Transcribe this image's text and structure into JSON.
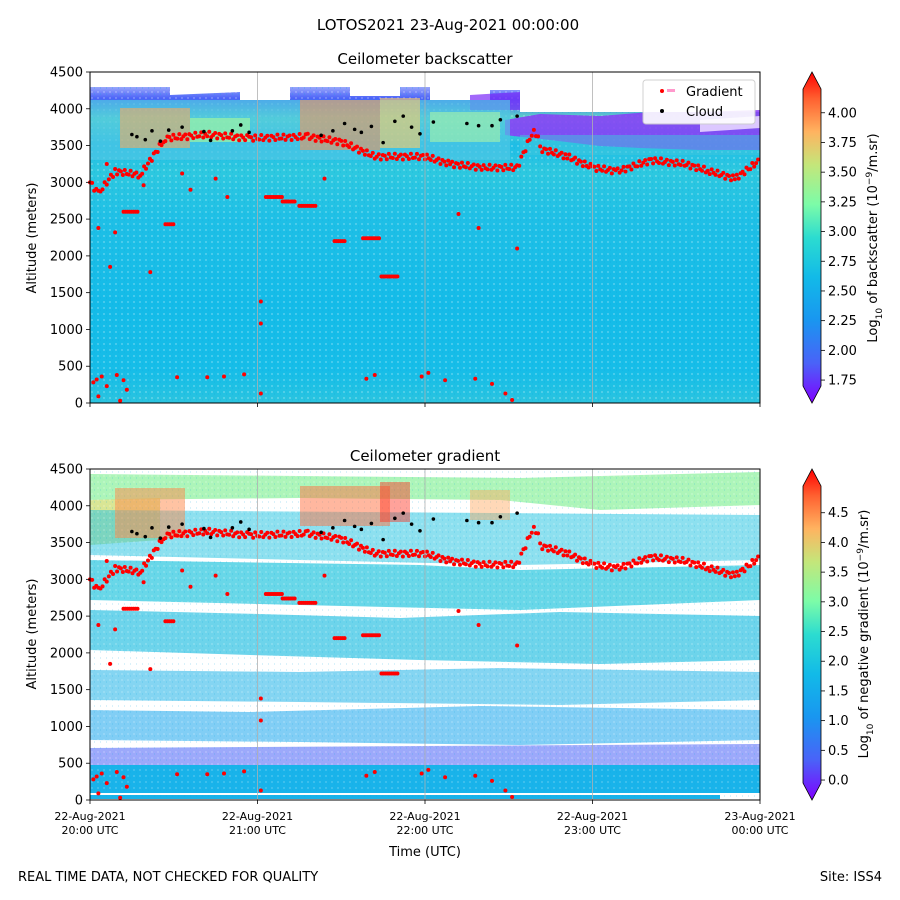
{
  "figure": {
    "title": "LOTOS2021 23-Aug-2021 00:00:00",
    "footer_left": "REAL TIME DATA, NOT CHECKED FOR QUALITY",
    "footer_right": "Site: ISS4",
    "xlabel": "Time (UTC)",
    "x_ticks": [
      {
        "date": "22-Aug-2021",
        "time": "20:00 UTC"
      },
      {
        "date": "22-Aug-2021",
        "time": "21:00 UTC"
      },
      {
        "date": "22-Aug-2021",
        "time": "22:00 UTC"
      },
      {
        "date": "22-Aug-2021",
        "time": "23:00 UTC"
      },
      {
        "date": "23-Aug-2021",
        "time": "00:00 UTC"
      }
    ]
  },
  "colors": {
    "gradient_marker": "#ff0000",
    "cloud_marker": "#000000",
    "grid": "#b0b0b0",
    "cmap": [
      "#8000ff",
      "#4a62f8",
      "#12bae8",
      "#2cdcd0",
      "#7cfca8",
      "#c4e67a",
      "#ffb360",
      "#ff6030",
      "#ff0000"
    ]
  },
  "chart_data": [
    {
      "type": "heatmap",
      "title": "Ceilometer backscatter",
      "xlabel": "",
      "ylabel": "Altitude (meters)",
      "xlim": [
        0,
        4
      ],
      "ylim": [
        0,
        4500
      ],
      "y_ticks": [
        0,
        500,
        1000,
        1500,
        2000,
        2500,
        3000,
        3500,
        4000,
        4500
      ],
      "colorbar": {
        "label": "Log10 of backscatter (10^-9/m.sr)",
        "label_base": "Log",
        "label_sub": "10",
        "label_mid": " of backscatter (10",
        "label_sup": "−9",
        "label_end": "/m.sr)",
        "range": [
          1.7,
          4.2
        ],
        "ticks": [
          "1.75",
          "2.00",
          "2.25",
          "2.50",
          "2.75",
          "3.00",
          "3.25",
          "3.50",
          "3.75",
          "4.00"
        ]
      },
      "legend": {
        "position": "top-right",
        "entries": [
          "Gradient",
          "Cloud"
        ]
      }
    },
    {
      "type": "heatmap",
      "title": "Ceilometer gradient",
      "xlabel": "Time (UTC)",
      "ylabel": "Altitude (meters)",
      "xlim": [
        0,
        4
      ],
      "ylim": [
        0,
        4500
      ],
      "y_ticks": [
        0,
        500,
        1000,
        1500,
        2000,
        2500,
        3000,
        3500,
        4000,
        4500
      ],
      "colorbar": {
        "label": "Log10 of negative gradient (10^-9/m.sr)",
        "label_base": "Log",
        "label_sub": "10",
        "label_mid": " of negative gradient (10",
        "label_sup": "−9",
        "label_end": "/m.sr)",
        "range": [
          -0.05,
          4.95
        ],
        "ticks": [
          "0.0",
          "0.5",
          "1.0",
          "1.5",
          "2.0",
          "2.5",
          "3.0",
          "3.5",
          "4.0",
          "4.5"
        ]
      }
    }
  ],
  "series": {
    "gradient_line": [
      [
        0,
        3000
      ],
      [
        0.05,
        2850
      ],
      [
        0.15,
        3150
      ],
      [
        0.3,
        3100
      ],
      [
        0.45,
        3600
      ],
      [
        0.7,
        3650
      ],
      [
        0.95,
        3600
      ],
      [
        1.3,
        3620
      ],
      [
        1.5,
        3550
      ],
      [
        1.7,
        3350
      ],
      [
        2.0,
        3350
      ],
      [
        2.15,
        3250
      ],
      [
        2.35,
        3200
      ],
      [
        2.55,
        3200
      ],
      [
        2.65,
        3720
      ],
      [
        2.7,
        3450
      ],
      [
        2.85,
        3350
      ],
      [
        3.0,
        3200
      ],
      [
        3.15,
        3150
      ],
      [
        3.35,
        3300
      ],
      [
        3.55,
        3250
      ],
      [
        3.7,
        3150
      ],
      [
        3.85,
        3050
      ],
      [
        4.0,
        3300
      ]
    ],
    "gradient_segments": [
      [
        0.2,
        0.28,
        2600
      ],
      [
        0.45,
        0.5,
        2430
      ],
      [
        1.05,
        1.15,
        2800
      ],
      [
        1.15,
        1.22,
        2740
      ],
      [
        1.25,
        1.34,
        2680
      ],
      [
        1.63,
        1.72,
        2240
      ],
      [
        1.46,
        1.52,
        2200
      ],
      [
        1.74,
        1.84,
        1720
      ]
    ],
    "gradient_scatter": [
      [
        0.02,
        280
      ],
      [
        0.04,
        320
      ],
      [
        0.07,
        360
      ],
      [
        0.1,
        230
      ],
      [
        0.16,
        380
      ],
      [
        0.2,
        310
      ],
      [
        0.22,
        180
      ],
      [
        0.18,
        30
      ],
      [
        0.05,
        90
      ],
      [
        0.52,
        350
      ],
      [
        0.7,
        350
      ],
      [
        0.8,
        360
      ],
      [
        0.92,
        390
      ],
      [
        1.02,
        130
      ],
      [
        1.65,
        330
      ],
      [
        1.7,
        380
      ],
      [
        1.98,
        360
      ],
      [
        2.02,
        410
      ],
      [
        2.12,
        310
      ],
      [
        2.3,
        330
      ],
      [
        2.4,
        260
      ],
      [
        2.48,
        130
      ],
      [
        2.52,
        40
      ],
      [
        0.05,
        2380
      ],
      [
        0.15,
        2320
      ],
      [
        0.12,
        1850
      ],
      [
        0.36,
        1780
      ],
      [
        1.02,
        1380
      ],
      [
        1.02,
        1080
      ],
      [
        0.1,
        3250
      ],
      [
        0.32,
        2960
      ],
      [
        0.55,
        3120
      ],
      [
        0.75,
        3050
      ],
      [
        1.4,
        3050
      ],
      [
        2.2,
        2570
      ],
      [
        2.32,
        2380
      ],
      [
        2.55,
        2100
      ],
      [
        0.6,
        2900
      ],
      [
        0.82,
        2800
      ]
    ],
    "cloud_scatter": [
      [
        0.25,
        3650
      ],
      [
        0.28,
        3620
      ],
      [
        0.33,
        3580
      ],
      [
        0.37,
        3700
      ],
      [
        0.42,
        3560
      ],
      [
        0.47,
        3710
      ],
      [
        0.55,
        3750
      ],
      [
        0.68,
        3690
      ],
      [
        0.72,
        3570
      ],
      [
        0.85,
        3700
      ],
      [
        0.9,
        3780
      ],
      [
        0.95,
        3680
      ],
      [
        1.38,
        3640
      ],
      [
        1.45,
        3700
      ],
      [
        1.52,
        3800
      ],
      [
        1.58,
        3720
      ],
      [
        1.62,
        3680
      ],
      [
        1.68,
        3760
      ],
      [
        1.75,
        3540
      ],
      [
        1.82,
        3830
      ],
      [
        1.87,
        3900
      ],
      [
        1.92,
        3750
      ],
      [
        1.97,
        3660
      ],
      [
        2.05,
        3820
      ],
      [
        2.25,
        3800
      ],
      [
        2.32,
        3770
      ],
      [
        2.4,
        3770
      ],
      [
        2.45,
        3850
      ],
      [
        2.55,
        3900
      ]
    ],
    "gradient_shading_bands": [
      [
        0,
        3.5,
        3800
      ],
      [
        0.1,
        0.3,
        3700
      ]
    ]
  }
}
